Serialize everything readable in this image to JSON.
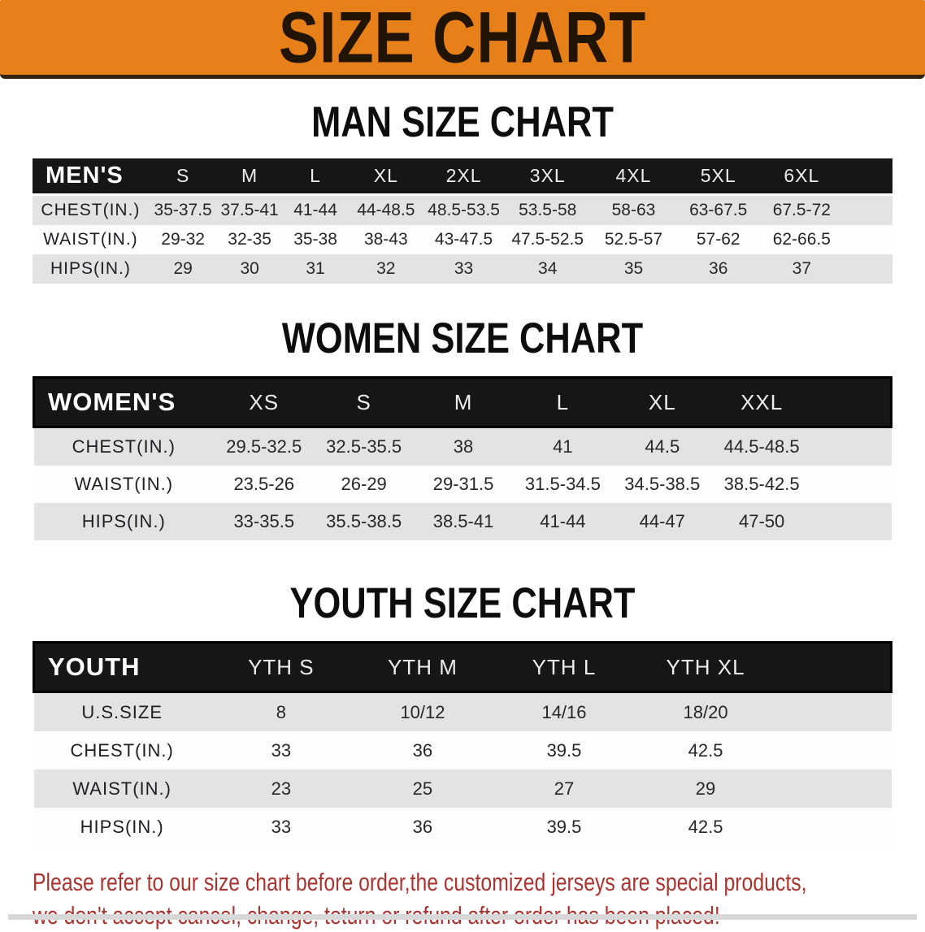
{
  "banner": {
    "title": "SIZE CHART"
  },
  "sections": [
    {
      "id": "men",
      "title": "MAN SIZE CHART",
      "header_label": "MEN'S",
      "columns": [
        "S",
        "M",
        "L",
        "XL",
        "2XL",
        "3XL",
        "4XL",
        "5XL",
        "6XL"
      ],
      "rows": [
        {
          "label": "CHEST(IN.)",
          "values": [
            "35-37.5",
            "37.5-41",
            "41-44",
            "44-48.5",
            "48.5-53.5",
            "53.5-58",
            "58-63",
            "63-67.5",
            "67.5-72"
          ]
        },
        {
          "label": "WAIST(IN.)",
          "values": [
            "29-32",
            "32-35",
            "35-38",
            "38-43",
            "43-47.5",
            "47.5-52.5",
            "52.5-57",
            "57-62",
            "62-66.5"
          ]
        },
        {
          "label": "HIPS(IN.)",
          "values": [
            "29",
            "30",
            "31",
            "32",
            "33",
            "34",
            "35",
            "36",
            "37"
          ]
        }
      ]
    },
    {
      "id": "women",
      "title": "WOMEN SIZE CHART",
      "header_label": "WOMEN'S",
      "columns": [
        "XS",
        "S",
        "M",
        "L",
        "XL",
        "XXL"
      ],
      "rows": [
        {
          "label": "CHEST(IN.)",
          "values": [
            "29.5-32.5",
            "32.5-35.5",
            "38",
            "41",
            "44.5",
            "44.5-48.5"
          ]
        },
        {
          "label": "WAIST(IN.)",
          "values": [
            "23.5-26",
            "26-29",
            "29-31.5",
            "31.5-34.5",
            "34.5-38.5",
            "38.5-42.5"
          ]
        },
        {
          "label": "HIPS(IN.)",
          "values": [
            "33-35.5",
            "35.5-38.5",
            "38.5-41",
            "41-44",
            "44-47",
            "47-50"
          ]
        }
      ]
    },
    {
      "id": "youth",
      "title": "YOUTH SIZE CHART",
      "header_label": "YOUTH",
      "columns": [
        "YTH S",
        "YTH M",
        "YTH L",
        "YTH XL"
      ],
      "rows": [
        {
          "label": "U.S.SIZE",
          "values": [
            "8",
            "10/12",
            "14/16",
            "18/20"
          ]
        },
        {
          "label": "CHEST(IN.)",
          "values": [
            "33",
            "36",
            "39.5",
            "42.5"
          ]
        },
        {
          "label": "WAIST(IN.)",
          "values": [
            "23",
            "25",
            "27",
            "29"
          ]
        },
        {
          "label": "HIPS(IN.)",
          "values": [
            "33",
            "36",
            "39.5",
            "42.5"
          ]
        }
      ]
    }
  ],
  "disclaimer": {
    "line1": "Please refer to our size chart before order,the customized jerseys are special products,",
    "line2": "we don't accept cancel, change, teturn or refund after order has been placed!"
  },
  "colors": {
    "banner_orange": "#e8801a",
    "header_black": "#161616",
    "stripe_gray": "#e3e3e3",
    "stripe_white": "#fdfdfd",
    "disclaimer_red": "#a93430"
  }
}
